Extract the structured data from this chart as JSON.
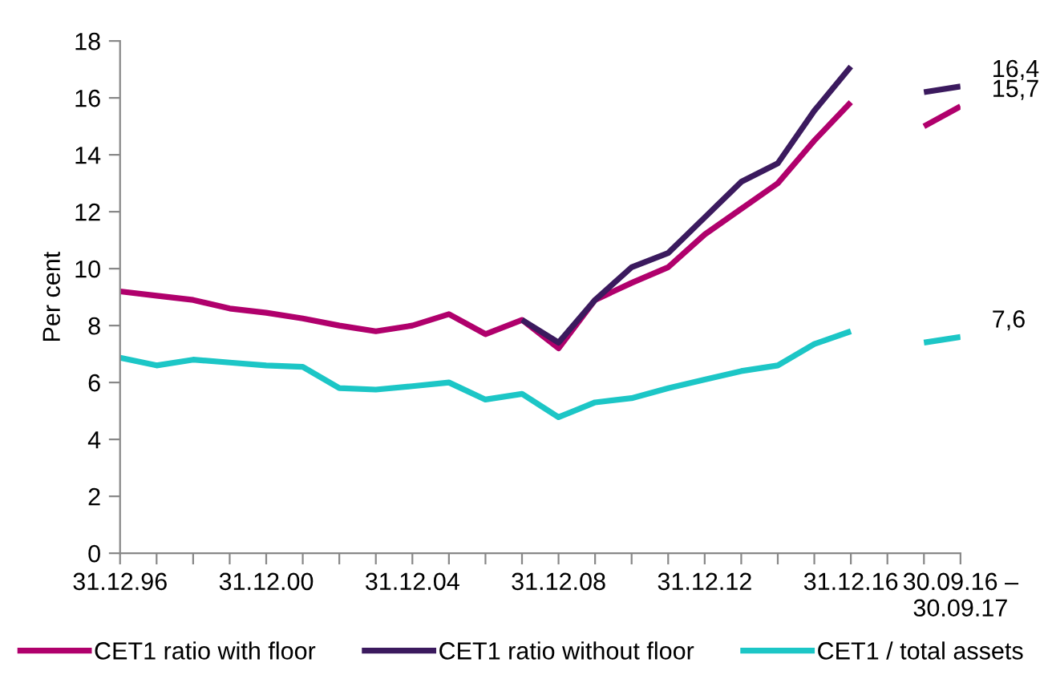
{
  "chart_data": {
    "type": "line",
    "ylabel": "Per cent",
    "categories": [
      "31.12.96",
      null,
      null,
      null,
      "31.12.00",
      null,
      null,
      null,
      "31.12.04",
      null,
      null,
      null,
      "31.12.08",
      null,
      null,
      null,
      "31.12.12",
      null,
      null,
      null,
      "31.12.16",
      null,
      null,
      "30.09.16 –\n30.09.17"
    ],
    "series": [
      {
        "name": "CET1 ratio with floor",
        "color": "#b0006c",
        "values": [
          9.2,
          9.05,
          8.9,
          8.6,
          8.45,
          8.25,
          8.0,
          7.8,
          8.0,
          8.4,
          7.7,
          8.2,
          7.2,
          8.9,
          9.5,
          10.05,
          11.2,
          12.1,
          13.0,
          14.5,
          15.85,
          null,
          15.0,
          15.7
        ],
        "value_labels": [
          null,
          null,
          null,
          null,
          null,
          null,
          null,
          null,
          null,
          null,
          null,
          null,
          null,
          null,
          null,
          null,
          null,
          null,
          null,
          null,
          null,
          null,
          null,
          "15,7"
        ]
      },
      {
        "name": "CET1 ratio without floor",
        "color": "#3b1a5e",
        "values": [
          null,
          null,
          null,
          null,
          null,
          null,
          null,
          null,
          null,
          null,
          null,
          8.2,
          7.4,
          8.9,
          10.05,
          10.55,
          11.8,
          13.05,
          13.7,
          15.55,
          17.1,
          null,
          16.2,
          16.4
        ],
        "value_labels": [
          null,
          null,
          null,
          null,
          null,
          null,
          null,
          null,
          null,
          null,
          null,
          null,
          null,
          null,
          null,
          null,
          null,
          null,
          null,
          null,
          null,
          null,
          null,
          "16,4"
        ]
      },
      {
        "name": "CET1 / total assets",
        "color": "#1cc6c6",
        "values": [
          6.87,
          6.6,
          6.8,
          6.7,
          6.6,
          6.55,
          5.8,
          5.75,
          5.87,
          6.0,
          5.4,
          5.6,
          4.78,
          5.3,
          5.45,
          5.8,
          6.1,
          6.4,
          6.6,
          7.35,
          7.8,
          null,
          7.4,
          7.6
        ],
        "value_labels": [
          null,
          null,
          null,
          null,
          null,
          null,
          null,
          null,
          null,
          null,
          null,
          null,
          null,
          null,
          null,
          null,
          null,
          null,
          null,
          null,
          null,
          null,
          null,
          "7,6"
        ]
      }
    ],
    "ylim": [
      0,
      18
    ],
    "yticks": [
      0,
      2,
      4,
      6,
      8,
      10,
      12,
      14,
      16,
      18
    ],
    "legend": "bottom",
    "grid": false,
    "marker": "none",
    "line_style": "solid"
  }
}
